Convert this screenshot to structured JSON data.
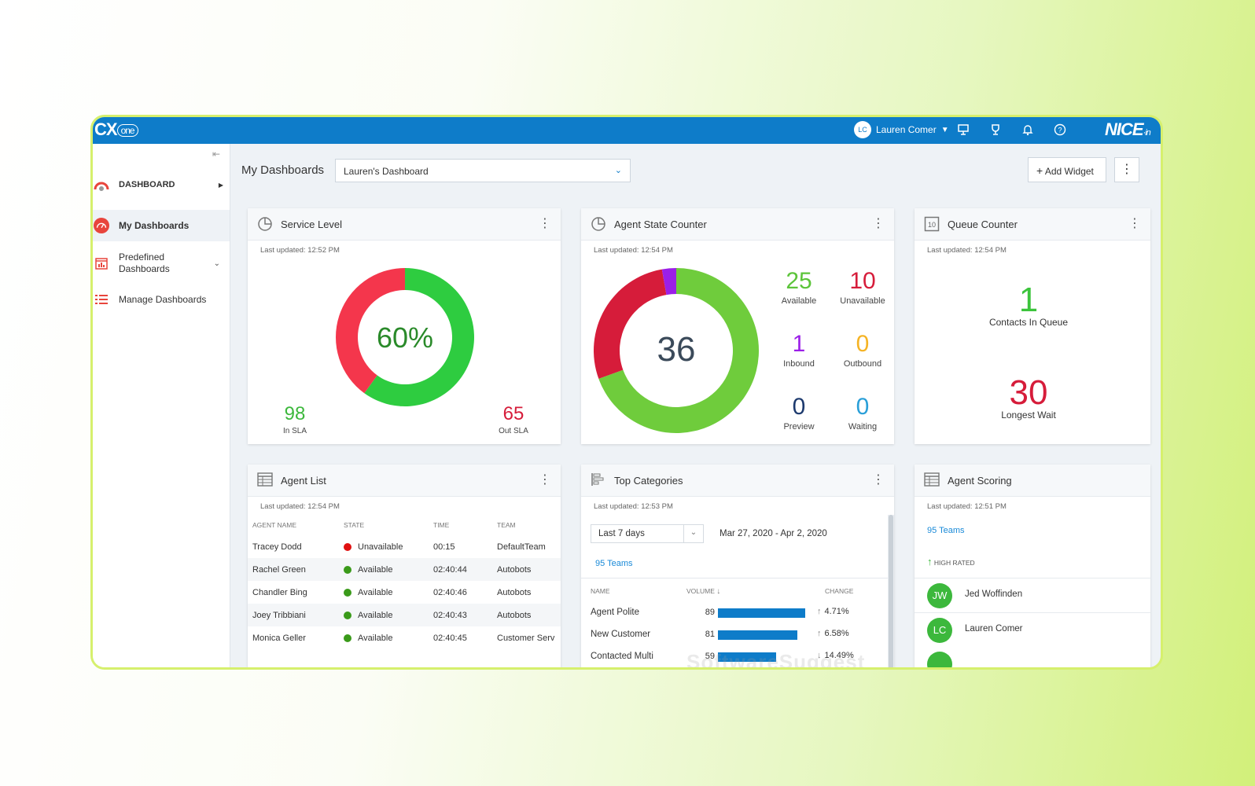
{
  "topbar": {
    "logo": "CX",
    "logo_suffix": "one",
    "user_initials": "LC",
    "user_name": "Lauren Comer",
    "brand": "NICE",
    "brand_suffix": "·in",
    "icons": [
      "caret-down-icon",
      "presentation-icon",
      "trophy-icon",
      "bell-icon",
      "help-icon"
    ]
  },
  "sidebar": {
    "items": [
      {
        "label": "DASHBOARD",
        "icon": "gauge-icon"
      },
      {
        "label": "My Dashboards",
        "icon": "speedometer-icon"
      },
      {
        "label": "Predefined Dashboards",
        "icon": "calendar-chart-icon"
      },
      {
        "label": "Manage Dashboards",
        "icon": "list-icon"
      }
    ]
  },
  "header": {
    "title": "My Dashboards",
    "selected_dashboard": "Lauren's Dashboard",
    "add_widget": "Add Widget"
  },
  "service_level": {
    "title": "Service Level",
    "updated": "Last updated: 12:52 PM",
    "percent_label": "60%",
    "percent": 60,
    "in_sla_value": "98",
    "in_sla_label": "In SLA",
    "out_sla_value": "65",
    "out_sla_label": "Out SLA",
    "colors": {
      "in": "#2ecc40",
      "out": "#f4364c"
    }
  },
  "agent_state": {
    "title": "Agent State Counter",
    "updated": "Last updated: 12:54 PM",
    "total": "36",
    "segments": [
      {
        "name": "Available",
        "value": 25,
        "color": "#6fcc3c"
      },
      {
        "name": "Unavailable",
        "value": 10,
        "color": "#d61c3a"
      },
      {
        "name": "Inbound",
        "value": 1,
        "color": "#9b1fe8"
      }
    ],
    "counters": [
      {
        "value": "25",
        "label": "Available",
        "color": "#5cc43a"
      },
      {
        "value": "10",
        "label": "Unavailable",
        "color": "#d61c3a"
      },
      {
        "value": "1",
        "label": "Inbound",
        "color": "#9b1fe8"
      },
      {
        "value": "0",
        "label": "Outbound",
        "color": "#f5b324"
      },
      {
        "value": "0",
        "label": "Preview",
        "color": "#1d3a6e"
      },
      {
        "value": "0",
        "label": "Waiting",
        "color": "#2a9fd8"
      }
    ]
  },
  "queue_counter": {
    "title": "Queue Counter",
    "icon_text": "10",
    "updated": "Last updated: 12:54 PM",
    "contacts_value": "1",
    "contacts_label": "Contacts In Queue",
    "wait_value": "30",
    "wait_label": "Longest Wait"
  },
  "agent_list": {
    "title": "Agent List",
    "updated": "Last updated: 12:54 PM",
    "columns": [
      "AGENT NAME",
      "STATE",
      "TIME",
      "TEAM"
    ],
    "rows": [
      {
        "name": "Tracey Dodd",
        "state": "Unavailable",
        "state_color": "#e01010",
        "time": "00:15",
        "team": "DefaultTeam"
      },
      {
        "name": "Rachel Green",
        "state": "Available",
        "state_color": "#3a9a1a",
        "time": "02:40:44",
        "team": "Autobots"
      },
      {
        "name": "Chandler Bing",
        "state": "Available",
        "state_color": "#3a9a1a",
        "time": "02:40:46",
        "team": "Autobots"
      },
      {
        "name": "Joey Tribbiani",
        "state": "Available",
        "state_color": "#3a9a1a",
        "time": "02:40:43",
        "team": "Autobots"
      },
      {
        "name": "Monica Geller",
        "state": "Available",
        "state_color": "#3a9a1a",
        "time": "02:40:45",
        "team": "Customer Serv"
      }
    ]
  },
  "top_categories": {
    "title": "Top Categories",
    "updated": "Last updated: 12:53 PM",
    "range_select": "Last 7 days",
    "date_range": "Mar 27, 2020 - Apr 2, 2020",
    "teams_link": "95 Teams",
    "columns": [
      "NAME",
      "VOLUME",
      "CHANGE"
    ],
    "rows": [
      {
        "name": "Agent Polite",
        "volume": 89,
        "change": "4.71%",
        "direction": "up"
      },
      {
        "name": "New Customer",
        "volume": 81,
        "change": "6.58%",
        "direction": "up"
      },
      {
        "name": "Contacted Multi",
        "volume": 59,
        "change": "14.49%",
        "direction": "down"
      }
    ]
  },
  "agent_scoring": {
    "title": "Agent Scoring",
    "updated": "Last updated: 12:51 PM",
    "teams_link": "95 Teams",
    "section": "HIGH RATED",
    "agents": [
      {
        "initials": "JW",
        "name": "Jed Woffinden"
      },
      {
        "initials": "LC",
        "name": "Lauren Comer"
      }
    ]
  },
  "watermark": "SoftwareSuggest"
}
